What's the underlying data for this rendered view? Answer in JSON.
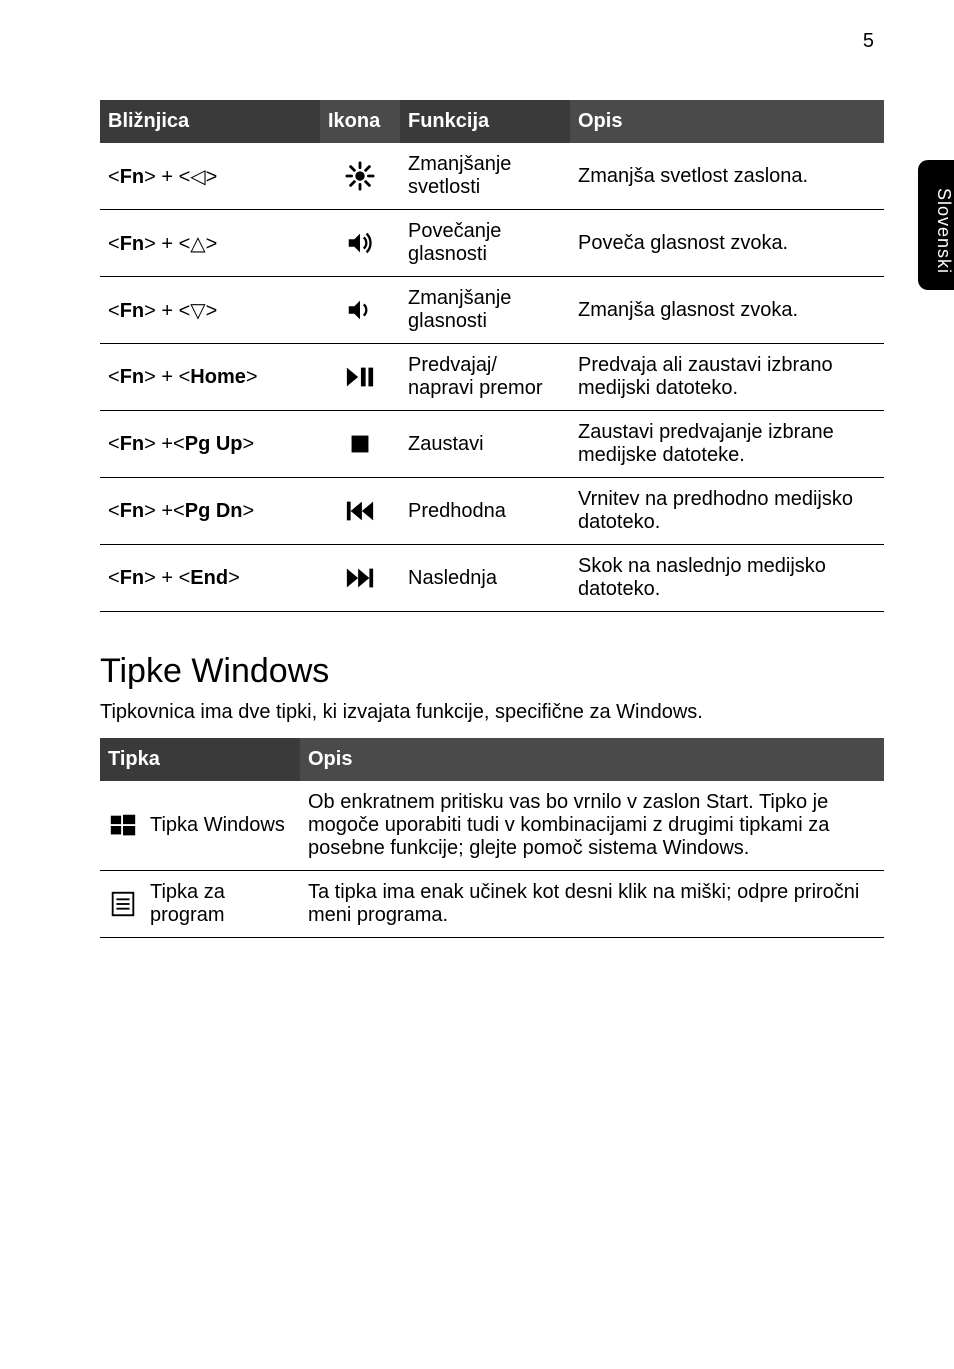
{
  "page_number": "5",
  "side_tab": "Slovenski",
  "shortcuts_table": {
    "headers": [
      "Bližnjica",
      "Ikona",
      "Funkcija",
      "Opis"
    ],
    "rows": [
      {
        "shortcut_html": "&lt;<b>Fn</b>&gt; + &lt;◁&gt;",
        "icon": "bright-down",
        "func": "Zmanjšanje svetlosti",
        "desc": "Zmanjša svetlost zaslona."
      },
      {
        "shortcut_html": "&lt;<b>Fn</b>&gt; + &lt;△&gt;",
        "icon": "vol-up",
        "func": "Povečanje glasnosti",
        "desc": "Poveča glasnost zvoka."
      },
      {
        "shortcut_html": "&lt;<b>Fn</b>&gt; + &lt;▽&gt;",
        "icon": "vol-down",
        "func": "Zmanjšanje glasnosti",
        "desc": "Zmanjša glasnost zvoka."
      },
      {
        "shortcut_html": "&lt;<b>Fn</b>&gt; + &lt;<b>Home</b>&gt;",
        "icon": "play-pause",
        "func": "Predvajaj/ napravi premor",
        "desc": "Predvaja ali zaustavi izbrano medijski datoteko."
      },
      {
        "shortcut_html": "&lt;<b>Fn</b>&gt; +&lt;<b>Pg Up</b>&gt;",
        "icon": "stop",
        "func": "Zaustavi",
        "desc": "Zaustavi predvajanje izbrane medijske datoteke."
      },
      {
        "shortcut_html": "&lt;<b>Fn</b>&gt; +&lt;<b>Pg Dn</b>&gt;",
        "icon": "prev",
        "func": "Predhodna",
        "desc": "Vrnitev na predhodno medijsko datoteko."
      },
      {
        "shortcut_html": "&lt;<b>Fn</b>&gt; + &lt;<b>End</b>&gt;",
        "icon": "next",
        "func": "Naslednja",
        "desc": "Skok na naslednjo medijsko datoteko."
      }
    ]
  },
  "section2": {
    "title": "Tipke Windows",
    "lead": "Tipkovnica ima dve tipki, ki izvajata funkcije, specifične za Windows.",
    "headers": [
      "Tipka",
      "Opis"
    ],
    "rows": [
      {
        "icon": "windows",
        "label": "Tipka Windows",
        "desc": "Ob enkratnem pritisku vas bo vrnilo v zaslon Start. Tipko je mogoče uporabiti tudi v kombinacijami z drugimi tipkami za posebne funkcije; glejte pomoč sistema Windows."
      },
      {
        "icon": "menu",
        "label": "Tipka za program",
        "desc": "Ta tipka ima enak učinek kot desni klik na miški; odpre priročni meni programa."
      }
    ]
  }
}
